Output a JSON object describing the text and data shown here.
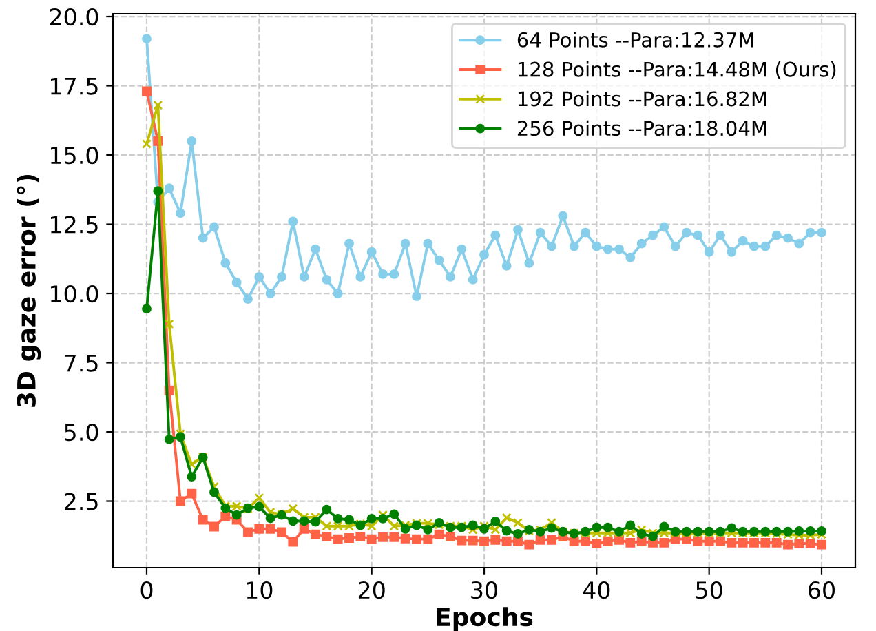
{
  "chart_data": {
    "type": "line",
    "xlabel": "Epochs",
    "ylabel": "3D gaze error (°)",
    "x": [
      0,
      1,
      2,
      3,
      4,
      5,
      6,
      7,
      8,
      9,
      10,
      11,
      12,
      13,
      14,
      15,
      16,
      17,
      18,
      19,
      20,
      21,
      22,
      23,
      24,
      25,
      26,
      27,
      28,
      29,
      30,
      31,
      32,
      33,
      34,
      35,
      36,
      37,
      38,
      39,
      40,
      41,
      42,
      43,
      44,
      45,
      46,
      47,
      48,
      49,
      50,
      51,
      52,
      53,
      54,
      55,
      56,
      57,
      58,
      59,
      60
    ],
    "series": [
      {
        "name": "64 Points --Para:12.37M",
        "color": "#87ceeb",
        "marker": "circle",
        "values": [
          19.2,
          13.3,
          13.8,
          12.9,
          15.5,
          12.0,
          12.4,
          11.1,
          10.4,
          9.8,
          10.6,
          10.0,
          10.6,
          12.6,
          10.6,
          11.6,
          10.5,
          10.0,
          11.8,
          10.6,
          11.5,
          10.7,
          10.7,
          11.8,
          9.9,
          11.8,
          11.2,
          10.6,
          11.6,
          10.5,
          11.4,
          12.1,
          11.0,
          12.3,
          11.1,
          12.2,
          11.7,
          12.8,
          11.7,
          12.2,
          11.7,
          11.6,
          11.6,
          11.3,
          11.8,
          12.1,
          12.4,
          11.7,
          12.2,
          12.1,
          11.5,
          12.1,
          11.5,
          11.9,
          11.7,
          11.7,
          12.1,
          12.0,
          11.8,
          12.2,
          12.2
        ]
      },
      {
        "name": "128 Points --Para:14.48M (Ours)",
        "color": "#ff6347",
        "marker": "square",
        "values": [
          17.3,
          15.5,
          6.5,
          2.5,
          2.77,
          1.83,
          1.58,
          1.95,
          1.83,
          1.38,
          1.5,
          1.5,
          1.38,
          1.03,
          1.5,
          1.3,
          1.22,
          1.13,
          1.17,
          1.22,
          1.13,
          1.2,
          1.2,
          1.15,
          1.13,
          1.13,
          1.3,
          1.22,
          1.08,
          1.08,
          1.05,
          1.1,
          1.05,
          1.05,
          0.93,
          1.1,
          1.1,
          1.22,
          1.05,
          1.05,
          0.97,
          1.05,
          1.1,
          1.0,
          1.05,
          1.0,
          1.0,
          1.13,
          1.13,
          1.05,
          1.05,
          1.05,
          1.0,
          1.0,
          1.0,
          1.0,
          1.0,
          0.93,
          0.97,
          0.97,
          0.93
        ]
      },
      {
        "name": "192 Points --Para:16.82M",
        "color": "#bfbf00",
        "marker": "cross",
        "values": [
          15.4,
          16.8,
          8.9,
          4.93,
          3.83,
          4.1,
          3.02,
          2.32,
          2.32,
          2.23,
          2.62,
          2.1,
          2.02,
          2.23,
          1.92,
          1.92,
          1.6,
          1.6,
          1.6,
          1.68,
          1.6,
          2.0,
          1.6,
          1.63,
          1.7,
          1.7,
          1.65,
          1.6,
          1.6,
          1.47,
          1.6,
          1.47,
          1.9,
          1.72,
          1.43,
          1.47,
          1.72,
          1.4,
          1.35,
          1.35,
          1.35,
          1.35,
          1.35,
          1.35,
          1.47,
          1.35,
          1.35,
          1.35,
          1.35,
          1.35,
          1.35,
          1.35,
          1.35,
          1.35,
          1.35,
          1.35,
          1.32,
          1.3,
          1.27,
          1.27,
          1.3
        ]
      },
      {
        "name": "256 Points --Para:18.04M",
        "color": "#008000",
        "marker": "circle",
        "values": [
          9.45,
          13.7,
          4.73,
          4.82,
          3.38,
          4.08,
          2.82,
          2.25,
          2.0,
          2.25,
          2.3,
          1.88,
          2.0,
          1.78,
          1.78,
          1.75,
          2.2,
          1.87,
          1.83,
          1.63,
          1.87,
          1.87,
          2.03,
          1.5,
          1.63,
          1.47,
          1.72,
          1.55,
          1.55,
          1.63,
          1.5,
          1.77,
          1.43,
          1.32,
          1.47,
          1.4,
          1.53,
          1.4,
          1.33,
          1.4,
          1.55,
          1.55,
          1.4,
          1.63,
          1.32,
          1.23,
          1.58,
          1.4,
          1.4,
          1.4,
          1.4,
          1.4,
          1.53,
          1.4,
          1.4,
          1.4,
          1.4,
          1.4,
          1.42,
          1.42,
          1.42
        ]
      }
    ],
    "xlim": [
      -3,
      63
    ],
    "xticks": [
      0,
      10,
      20,
      30,
      40,
      50,
      60
    ],
    "ylim": [
      0.1,
      20.1
    ],
    "yticks": [
      {
        "value": 2.5,
        "label": "2.5"
      },
      {
        "value": 5,
        "label": "5.0"
      },
      {
        "value": 7.5,
        "label": "7.5"
      },
      {
        "value": 10,
        "label": "10.0"
      },
      {
        "value": 12.5,
        "label": "12.5"
      },
      {
        "value": 15,
        "label": "15.0"
      },
      {
        "value": 17.5,
        "label": "17.5"
      },
      {
        "value": 20,
        "label": "20.0"
      }
    ],
    "grid": true,
    "line_style": "solid",
    "legend": "top right"
  }
}
